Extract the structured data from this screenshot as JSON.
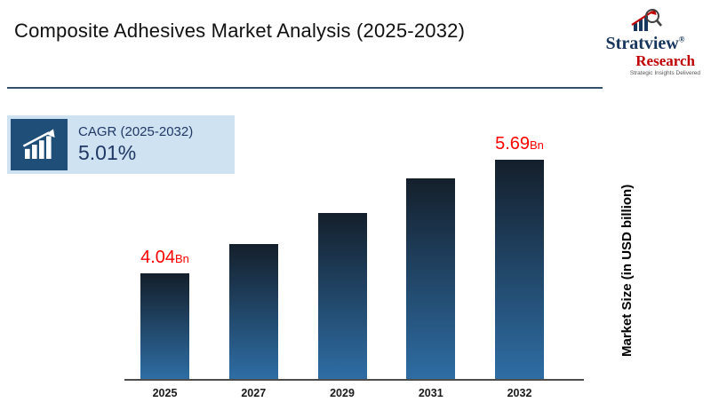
{
  "header": {
    "title": "Composite Adhesives Market Analysis (2025-2032)"
  },
  "logo": {
    "name": "Stratview",
    "registered": "®",
    "sub": "Research",
    "tagline": "Strategic Insights Delivered"
  },
  "cagr": {
    "label": "CAGR (2025-2032)",
    "value": "5.01%"
  },
  "chart_data": {
    "type": "bar",
    "title": "Composite Adhesives Market Analysis (2025-2032)",
    "categories": [
      "2025",
      "2027",
      "2029",
      "2031",
      "2032"
    ],
    "values": [
      4.04,
      4.46,
      4.91,
      5.42,
      5.69
    ],
    "unit": "USD billion",
    "ylabel": "Market Size (in USD billion)",
    "xlabel": "",
    "ylim": [
      2.5,
      5.69
    ],
    "grid": false,
    "legend": "none",
    "cagr_2025_2032": "5.01%",
    "bar_labels": [
      {
        "index": 0,
        "value": "4.04",
        "unit": "Bn"
      },
      {
        "index": 4,
        "value": "5.69",
        "unit": "Bn"
      }
    ]
  },
  "colors": {
    "label_red": "#ff0000",
    "logo_navy": "#17365d",
    "logo_red": "#c00000",
    "cagr_box_bg": "#cfe2f2",
    "cagr_tile_bg": "#1f4e79",
    "cagr_text": "#1f3864",
    "divider": "#33506b",
    "bar_top": "#141f2b",
    "bar_bottom": "#2e6da4",
    "axis_line": "#4d4d4d",
    "year_text": "#1a1a1a"
  }
}
